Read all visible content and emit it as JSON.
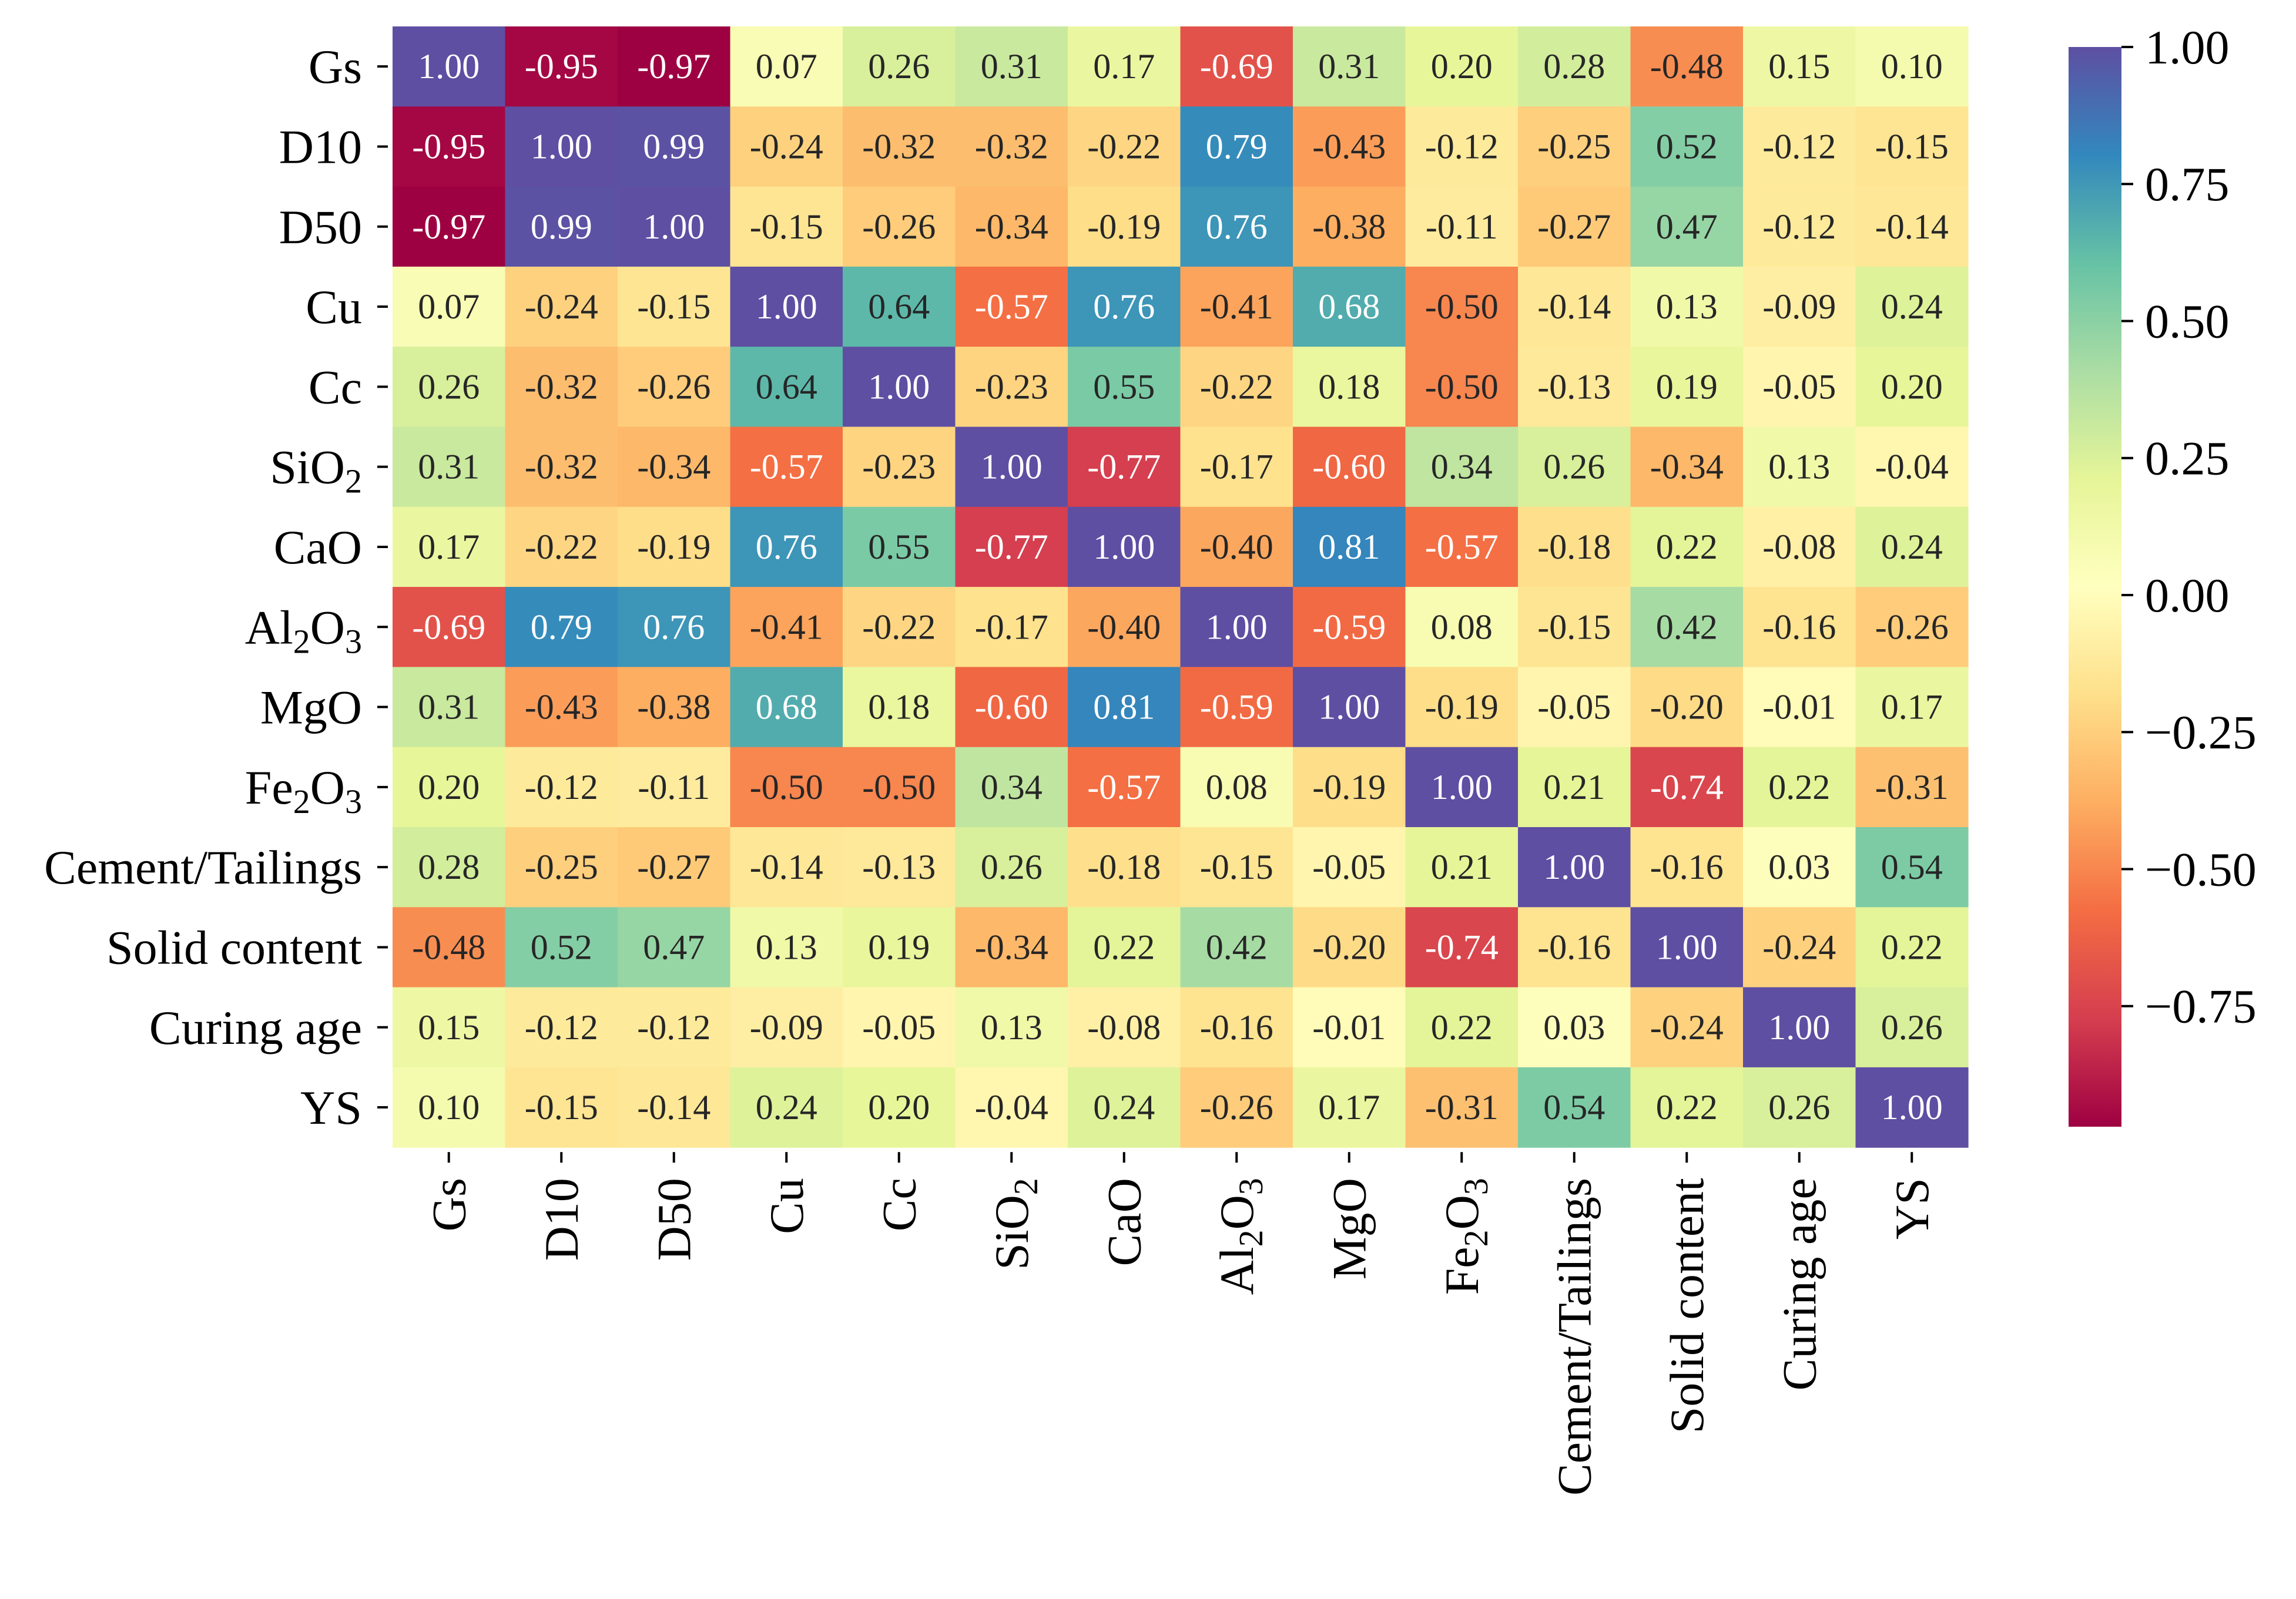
{
  "chart_data": {
    "type": "heatmap",
    "title": "",
    "colormap": "Spectral",
    "vmin": -0.97,
    "vmax": 1.0,
    "row_labels": [
      {
        "base": "Gs"
      },
      {
        "base": "D10"
      },
      {
        "base": "D50"
      },
      {
        "base": "Cu"
      },
      {
        "base": "Cc"
      },
      {
        "parts": [
          {
            "t": "SiO"
          },
          {
            "t": "2",
            "sub": true
          }
        ]
      },
      {
        "base": "CaO"
      },
      {
        "parts": [
          {
            "t": "Al"
          },
          {
            "t": "2",
            "sub": true
          },
          {
            "t": "O"
          },
          {
            "t": "3",
            "sub": true
          }
        ]
      },
      {
        "base": "MgO"
      },
      {
        "parts": [
          {
            "t": "Fe"
          },
          {
            "t": "2",
            "sub": true
          },
          {
            "t": "O"
          },
          {
            "t": "3",
            "sub": true
          }
        ]
      },
      {
        "base": "Cement/Tailings"
      },
      {
        "base": "Solid content"
      },
      {
        "base": "Curing age"
      },
      {
        "base": "YS"
      }
    ],
    "matrix": [
      [
        1.0,
        -0.95,
        -0.97,
        0.07,
        0.26,
        0.31,
        0.17,
        -0.69,
        0.31,
        0.2,
        0.28,
        -0.48,
        0.15,
        0.1
      ],
      [
        -0.95,
        1.0,
        0.99,
        -0.24,
        -0.32,
        -0.32,
        -0.22,
        0.79,
        -0.43,
        -0.12,
        -0.25,
        0.52,
        -0.12,
        -0.15
      ],
      [
        -0.97,
        0.99,
        1.0,
        -0.15,
        -0.26,
        -0.34,
        -0.19,
        0.76,
        -0.38,
        -0.11,
        -0.27,
        0.47,
        -0.12,
        -0.14
      ],
      [
        0.07,
        -0.24,
        -0.15,
        1.0,
        0.64,
        -0.57,
        0.76,
        -0.41,
        0.68,
        -0.5,
        -0.14,
        0.13,
        -0.09,
        0.24
      ],
      [
        0.26,
        -0.32,
        -0.26,
        0.64,
        1.0,
        -0.23,
        0.55,
        -0.22,
        0.18,
        -0.5,
        -0.13,
        0.19,
        -0.05,
        0.2
      ],
      [
        0.31,
        -0.32,
        -0.34,
        -0.57,
        -0.23,
        1.0,
        -0.77,
        -0.17,
        -0.6,
        0.34,
        0.26,
        -0.34,
        0.13,
        -0.04
      ],
      [
        0.17,
        -0.22,
        -0.19,
        0.76,
        0.55,
        -0.77,
        1.0,
        -0.4,
        0.81,
        -0.57,
        -0.18,
        0.22,
        -0.08,
        0.24
      ],
      [
        -0.69,
        0.79,
        0.76,
        -0.41,
        -0.22,
        -0.17,
        -0.4,
        1.0,
        -0.59,
        0.08,
        -0.15,
        0.42,
        -0.16,
        -0.26
      ],
      [
        0.31,
        -0.43,
        -0.38,
        0.68,
        0.18,
        -0.6,
        0.81,
        -0.59,
        1.0,
        -0.19,
        -0.05,
        -0.2,
        -0.01,
        0.17
      ],
      [
        0.2,
        -0.12,
        -0.11,
        -0.5,
        -0.5,
        0.34,
        -0.57,
        0.08,
        -0.19,
        1.0,
        0.21,
        -0.74,
        0.22,
        -0.31
      ],
      [
        0.28,
        -0.25,
        -0.27,
        -0.14,
        -0.13,
        0.26,
        -0.18,
        -0.15,
        -0.05,
        0.21,
        1.0,
        -0.16,
        0.03,
        0.54
      ],
      [
        -0.48,
        0.52,
        0.47,
        0.13,
        0.19,
        -0.34,
        0.22,
        0.42,
        -0.2,
        -0.74,
        -0.16,
        1.0,
        -0.24,
        0.22
      ],
      [
        0.15,
        -0.12,
        -0.12,
        -0.09,
        -0.05,
        0.13,
        -0.08,
        -0.16,
        -0.01,
        0.22,
        0.03,
        -0.24,
        1.0,
        0.26
      ],
      [
        0.1,
        -0.15,
        -0.14,
        0.24,
        0.2,
        -0.04,
        0.24,
        -0.26,
        0.17,
        -0.31,
        0.54,
        0.22,
        0.26,
        1.0
      ]
    ],
    "colorbar": {
      "ticks": [
        1.0,
        0.75,
        0.5,
        0.25,
        0.0,
        -0.25,
        -0.5,
        -0.75
      ],
      "tick_labels": [
        "1.00",
        "0.75",
        "0.50",
        "0.25",
        "0.00",
        "−0.25",
        "−0.50",
        "−0.75"
      ],
      "placement": "right"
    },
    "colors": {
      "stops": [
        "#9e0142",
        "#d53e4f",
        "#f46d43",
        "#fdae61",
        "#fee08b",
        "#ffffbf",
        "#e6f598",
        "#abdda4",
        "#66c2a5",
        "#3288bd",
        "#5e4fa2"
      ]
    }
  }
}
